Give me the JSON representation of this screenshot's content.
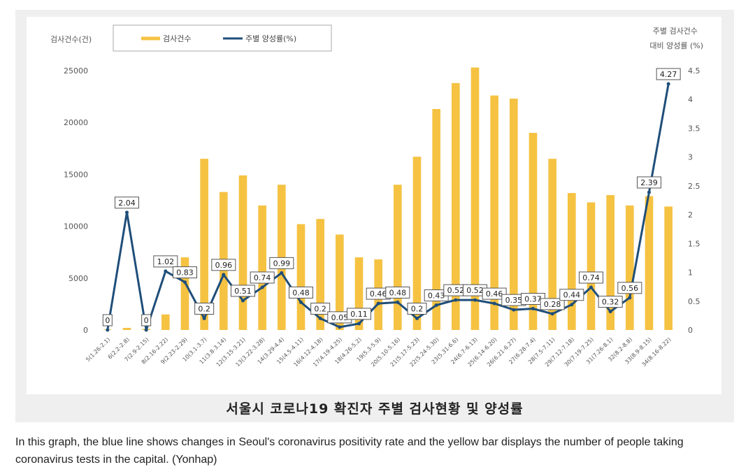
{
  "caption": "In this graph, the blue line shows changes in Seoul's coronavirus positivity rate and the yellow bar displays the number of people taking coronavirus tests in the capital. (Yonhap)",
  "chart_data": {
    "type": "bar",
    "title": "서울시 코로나19 확진자 주별 검사현황 및 양성률",
    "ylabel_left": "검사건수(건)",
    "ylabel_right_line1": "주별 검사건수",
    "ylabel_right_line2": "대비 양성률 (%)",
    "ylim_left": [
      0,
      25000
    ],
    "ylim_right": [
      0,
      4.5
    ],
    "yticks_left": [
      "0",
      "5000",
      "10000",
      "15000",
      "20000",
      "25000"
    ],
    "yticks_right": [
      "0",
      "0.5",
      "1",
      "1.5",
      "2",
      "2.5",
      "3",
      "3.5",
      "4",
      "4.5"
    ],
    "legend": {
      "position": "top-left",
      "bar_label": "검사건수",
      "line_label": "주별 양성률(%)"
    },
    "grid": false,
    "colors": {
      "bar": "#f5c242",
      "line": "#1f4e79"
    },
    "categories": [
      "5(1.26-2.1)",
      "6(2.2-2.8)",
      "7(2.9-2.15)",
      "8(2.16-2.22)",
      "9(2.23-2.29)",
      "10(3.1-3.7)",
      "11(3.8-3.14)",
      "12(3.15-3.21)",
      "13(3.22-3.28)",
      "14(3.29-4.4)",
      "15(4.5-4.11)",
      "16(4.12-4.18)",
      "17(4.19-4.25)",
      "18(4.26-5.2)",
      "19(5.3-5.9)",
      "20(5.10-5.16)",
      "21(5.17-5.23)",
      "22(5.24-5.30)",
      "23(5.31-6.6)",
      "24(6.7-6.13)",
      "25(6.14-6.20)",
      "26(6.21-6.27)",
      "27(6.28-7.4)",
      "28(7.5-7.11)",
      "29(7.12-7.18)",
      "30(7.19-7.25)",
      "31(7.26-8.1)",
      "32(8.2-8.8)",
      "33(8.9-8.15)",
      "34(8.16-8.22)"
    ],
    "series": [
      {
        "name": "검사건수",
        "type": "bar",
        "axis": "left",
        "values": [
          50,
          200,
          100,
          1500,
          7000,
          16500,
          13300,
          14900,
          12000,
          14000,
          10200,
          10700,
          9200,
          7000,
          6800,
          14000,
          16700,
          21300,
          23800,
          25300,
          22600,
          22300,
          19000,
          16500,
          13200,
          12300,
          13000,
          12000,
          12900,
          11900
        ]
      },
      {
        "name": "주별 양성률(%)",
        "type": "line",
        "axis": "right",
        "values": [
          0,
          2.04,
          0,
          1.02,
          0.83,
          0.2,
          0.96,
          0.51,
          0.74,
          0.99,
          0.48,
          0.2,
          0.05,
          0.11,
          0.46,
          0.48,
          0.2,
          0.43,
          0.52,
          0.52,
          0.46,
          0.35,
          0.37,
          0.28,
          0.44,
          0.74,
          0.32,
          0.56,
          2.39,
          4.27
        ],
        "labels": [
          "0",
          "2.04",
          "0",
          "1.02",
          "0.83",
          "0.2",
          "0.96",
          "0.51",
          "0.74",
          "0.99",
          "0.48",
          "0.2",
          "0.05",
          "0.11",
          "0.46",
          "0.48",
          "0.2",
          "0.43",
          "0.52",
          "0.52",
          "0.46",
          "0.35",
          "0.37",
          "0.28",
          "0.44",
          "0.74",
          "0.32",
          "0.56",
          "2.39",
          "4.27"
        ]
      }
    ]
  }
}
